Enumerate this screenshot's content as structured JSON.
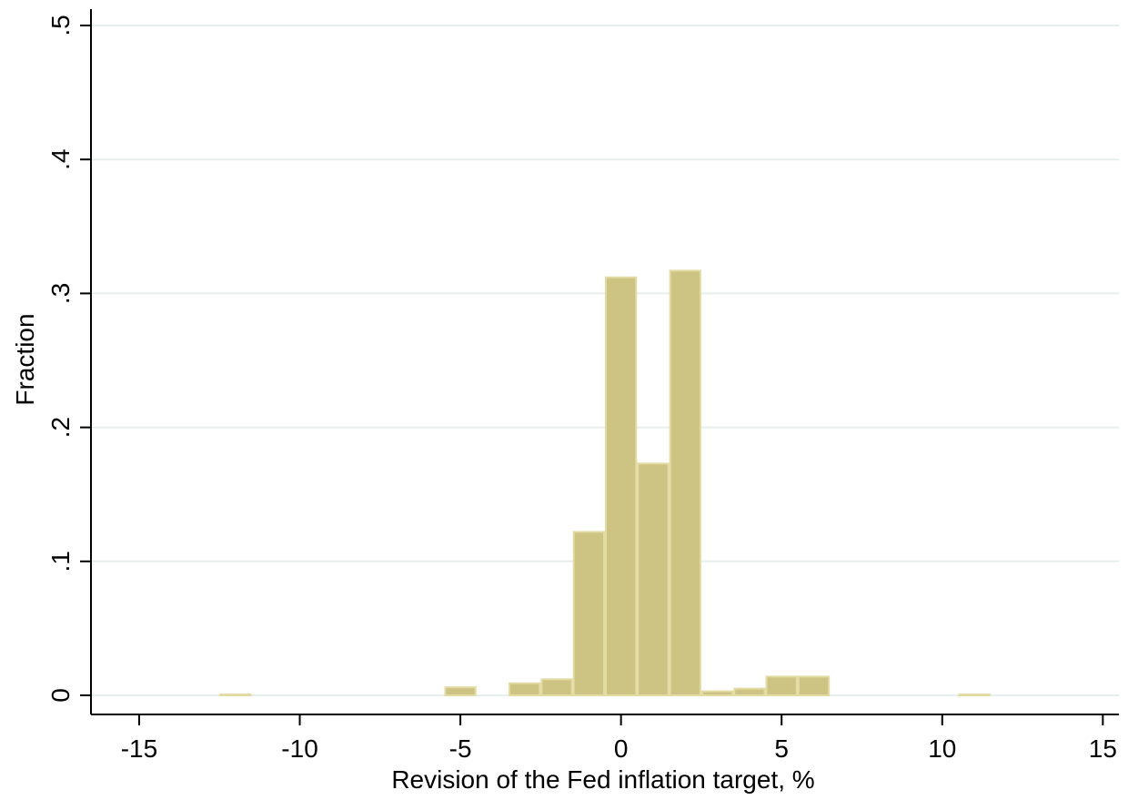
{
  "chart_data": {
    "type": "bar",
    "histogram": true,
    "title": "",
    "xlabel": "Revision of the Fed inflation target, %",
    "ylabel": "Fraction",
    "xlim": [
      -16.5,
      15.5
    ],
    "ylim": [
      0,
      0.5
    ],
    "xticks": [
      -15,
      -10,
      -5,
      0,
      5,
      10,
      15
    ],
    "xtick_labels": [
      "-15",
      "-10",
      "-5",
      "0",
      "5",
      "10",
      "15"
    ],
    "yticks": [
      0,
      0.1,
      0.2,
      0.3,
      0.4,
      0.5
    ],
    "ytick_labels": [
      "0",
      ".1",
      ".2",
      ".3",
      ".4",
      ".5"
    ],
    "grid": true,
    "bin_width": 1,
    "bins": [
      {
        "x": -12,
        "value": 0.0005
      },
      {
        "x": -5,
        "value": 0.006
      },
      {
        "x": -3,
        "value": 0.009
      },
      {
        "x": -2,
        "value": 0.012
      },
      {
        "x": -1,
        "value": 0.122
      },
      {
        "x": 0,
        "value": 0.312
      },
      {
        "x": 1,
        "value": 0.173
      },
      {
        "x": 2,
        "value": 0.317
      },
      {
        "x": 3,
        "value": 0.003
      },
      {
        "x": 4,
        "value": 0.005
      },
      {
        "x": 5,
        "value": 0.014
      },
      {
        "x": 6,
        "value": 0.014
      },
      {
        "x": 11,
        "value": 0.0005
      }
    ],
    "colors": {
      "bar_fill": "#cdc382",
      "bar_edge": "#e2dba3",
      "grid": "#e6efee",
      "axis": "#000000"
    }
  }
}
